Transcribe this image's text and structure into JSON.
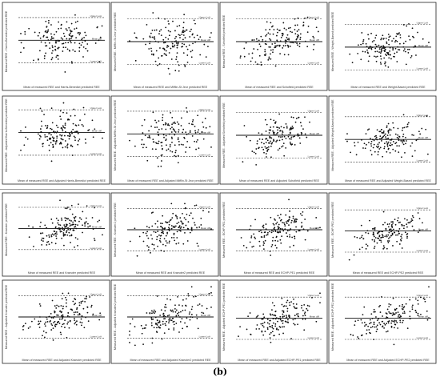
{
  "figure_label": "(b)",
  "chart_data": [
    {
      "type": "scatter",
      "title": "",
      "xlabel": "Mean of measured REE and Harris-Benedict predicted REE",
      "ylabel": "Measured REE - Harris-Benedict predicted REE",
      "bias_label": "Mean diff",
      "upper_label": "Upper LoA",
      "lower_label": "Lower LoA",
      "seed": 11,
      "slope": 0.05,
      "bias": 0.48,
      "spread": 0.17
    },
    {
      "type": "scatter",
      "title": "",
      "xlabel": "Mean of measured REE and Mifflin-St Jeor predicted REE",
      "ylabel": "Measured REE - Mifflin-St Jeor predicted REE",
      "bias_label": "Mean diff",
      "upper_label": "Upper LoA",
      "lower_label": "Lower LoA",
      "seed": 23,
      "slope": 0.07,
      "bias": 0.5,
      "spread": 0.17
    },
    {
      "type": "scatter",
      "title": "",
      "xlabel": "Mean of measured REE and Schofield predicted REE",
      "ylabel": "Measured REE - Schofield predicted REE",
      "bias_label": "Mean diff",
      "upper_label": "Upper LoA",
      "lower_label": "Lower LoA",
      "seed": 37,
      "slope": 0.32,
      "bias": 0.5,
      "spread": 0.14
    },
    {
      "type": "scatter",
      "title": "",
      "xlabel": "Mean of measured REE and Weight-Based predicted REE",
      "ylabel": "Measured REE - Weight-Based predicted REE",
      "bias_label": "Mean diff",
      "upper_label": "Upper LoA",
      "lower_label": "Lower LoA",
      "seed": 41,
      "slope": 0.12,
      "bias": 0.58,
      "spread": 0.12
    },
    {
      "type": "scatter",
      "title": "",
      "xlabel": "Mean of measured REE and Adjusted Harris-Benedict predicted REE",
      "ylabel": "Measured REE - Adjusted Harris-Benedict predicted REE",
      "bias_label": "Mean diff",
      "upper_label": "Upper LoA",
      "lower_label": "Lower LoA",
      "seed": 53,
      "slope": 0.12,
      "bias": 0.46,
      "spread": 0.16
    },
    {
      "type": "scatter",
      "title": "",
      "xlabel": "Mean of measured REE and Adjusted Mifflin-St Jeor predicted REE",
      "ylabel": "Measured REE - Adjusted Mifflin-St Jeor predicted REE",
      "bias_label": "Mean diff",
      "upper_label": "Upper LoA",
      "lower_label": "Lower LoA",
      "seed": 67,
      "slope": 0.15,
      "bias": 0.48,
      "spread": 0.17
    },
    {
      "type": "scatter",
      "title": "",
      "xlabel": "Mean of measured REE and Adjusted Schofield predicted REE",
      "ylabel": "Measured REE - Adjusted Schofield predicted REE",
      "bias_label": "Mean diff",
      "upper_label": "Upper LoA",
      "lower_label": "Lower LoA",
      "seed": 71,
      "slope": 0.35,
      "bias": 0.5,
      "spread": 0.14
    },
    {
      "type": "scatter",
      "title": "",
      "xlabel": "Mean of measured REE and Adjusted Weight-Based predicted REE",
      "ylabel": "Measured REE - Adjusted Weight-Based predicted REE",
      "bias_label": "Mean diff",
      "upper_label": "Upper LoA",
      "lower_label": "Lower LoA",
      "seed": 83,
      "slope": 0.18,
      "bias": 0.56,
      "spread": 0.12
    },
    {
      "type": "scatter",
      "title": "",
      "xlabel": "Mean of measured REE and Kraeuter predicted REE",
      "ylabel": "Measured REE - Kraeuter predicted REE",
      "bias_label": "Mean diff",
      "upper_label": "Upper LoA",
      "lower_label": "Lower LoA",
      "seed": 97,
      "slope": 0.2,
      "bias": 0.48,
      "spread": 0.15
    },
    {
      "type": "scatter",
      "title": "",
      "xlabel": "Mean of measured REE and Kraeuter2 predicted REE",
      "ylabel": "Measured REE - Kraeuter2 predicted REE",
      "bias_label": "Mean diff",
      "upper_label": "Upper LoA",
      "lower_label": "Lower LoA",
      "seed": 101,
      "slope": 0.28,
      "bias": 0.5,
      "spread": 0.15
    },
    {
      "type": "scatter",
      "title": "",
      "xlabel": "Mean of measured REE and ECHP-PE1 predicted REE",
      "ylabel": "Measured REE - ECHP-PE1 predicted REE",
      "bias_label": "Mean diff",
      "upper_label": "Upper LoA",
      "lower_label": "Lower LoA",
      "seed": 113,
      "slope": 0.38,
      "bias": 0.5,
      "spread": 0.13
    },
    {
      "type": "scatter",
      "title": "",
      "xlabel": "Mean of measured REE and ECHP-PE2 predicted REE",
      "ylabel": "Measured REE - ECHP-PE2 predicted REE",
      "bias_label": "Mean diff",
      "upper_label": "Upper LoA",
      "lower_label": "Lower LoA",
      "seed": 127,
      "slope": 0.42,
      "bias": 0.52,
      "spread": 0.12
    },
    {
      "type": "scatter",
      "title": "",
      "xlabel": "Mean of measured REE and Adjusted Kraeuter predicted REE",
      "ylabel": "Measured REE - Adjusted Kraeuter predicted REE",
      "bias_label": "Mean diff",
      "upper_label": "Upper LoA",
      "lower_label": "Lower LoA",
      "seed": 131,
      "slope": 0.3,
      "bias": 0.5,
      "spread": 0.14
    },
    {
      "type": "scatter",
      "title": "",
      "xlabel": "Mean of measured REE and Adjusted Kraeuter2 predicted REE",
      "ylabel": "Measured REE - Adjusted Kraeuter2 predicted REE",
      "bias_label": "Mean diff",
      "upper_label": "Upper LoA",
      "lower_label": "Lower LoA",
      "seed": 139,
      "slope": 0.34,
      "bias": 0.5,
      "spread": 0.14
    },
    {
      "type": "scatter",
      "title": "",
      "xlabel": "Mean of measured REE and Adjusted ECHP-PE1 predicted REE",
      "ylabel": "Measured REE - Adjusted ECHP-PE1 predicted REE",
      "bias_label": "Mean diff",
      "upper_label": "Upper LoA",
      "lower_label": "Lower LoA",
      "seed": 149,
      "slope": 0.36,
      "bias": 0.52,
      "spread": 0.13
    },
    {
      "type": "scatter",
      "title": "",
      "xlabel": "Mean of measured REE and Adjusted ECHP-PE2 predicted REE",
      "ylabel": "Measured REE - Adjusted ECHP-PE2 predicted REE",
      "bias_label": "Mean diff",
      "upper_label": "Upper LoA",
      "lower_label": "Lower LoA",
      "seed": 157,
      "slope": 0.4,
      "bias": 0.52,
      "spread": 0.12
    }
  ]
}
